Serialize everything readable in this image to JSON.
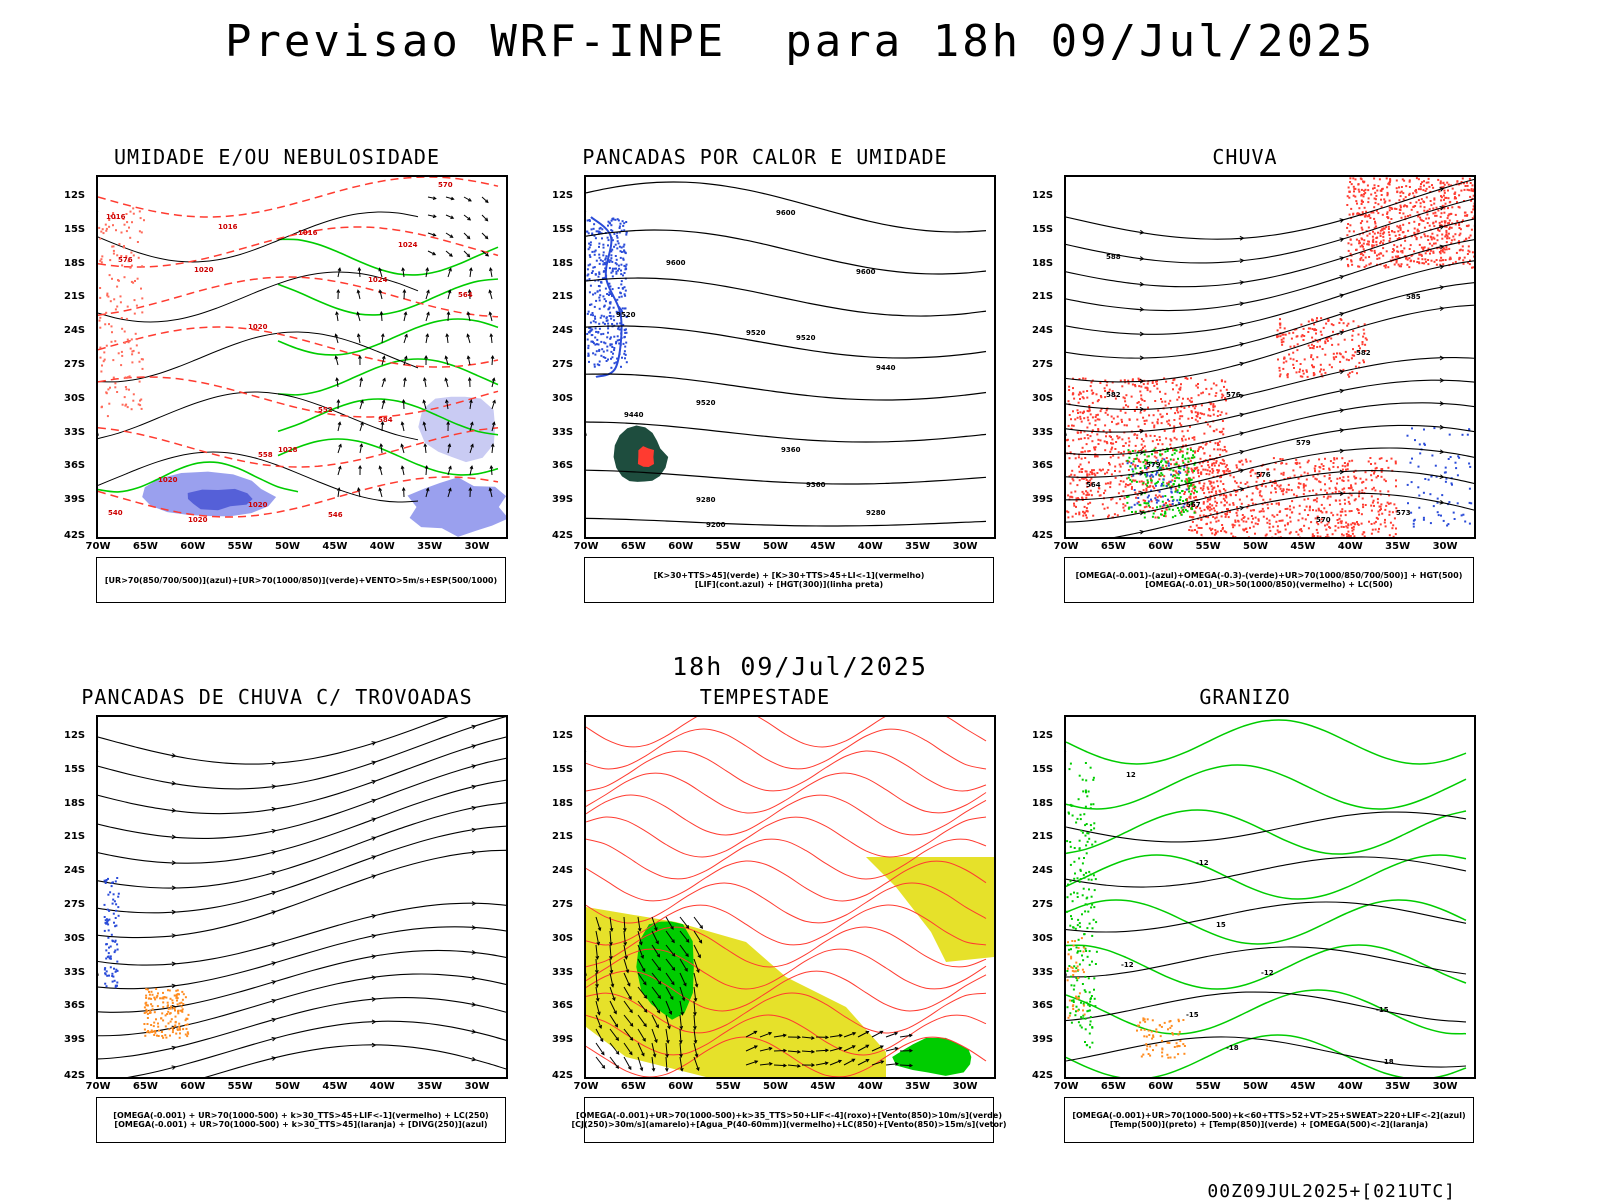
{
  "title": "Previsao WRF-INPE  para 18h 09/Jul/2025",
  "mid_title": "18h 09/Jul/2025",
  "footer": "00Z09JUL2025+[021UTC]",
  "lat_labels": [
    "12S",
    "15S",
    "18S",
    "21S",
    "24S",
    "27S",
    "30S",
    "33S",
    "36S",
    "39S",
    "42S"
  ],
  "lon_labels": [
    "70W",
    "65W",
    "60W",
    "55W",
    "50W",
    "45W",
    "40W",
    "35W",
    "30W"
  ],
  "colors": {
    "green": "#00cc00",
    "blue": "#2a4bd8",
    "red": "#ff3b30",
    "light_red": "#ff6a5a",
    "yellow": "#e6e12a",
    "orange": "#ff8c20",
    "purple_shade": "#9aa0ee",
    "dark_green": "#1e4d3e"
  },
  "panels": [
    {
      "id": "umidade",
      "title": "UMIDADE E/OU NEBULOSIDADE",
      "legend": [
        "[UR>70(850/700/500)](azul)+[UR>70(1000/850)](verde)+VENTO>5m/s+ESP(500/1000)"
      ],
      "contour_labels": [
        "1016",
        "1016",
        "1016",
        "1020",
        "1020",
        "1024",
        "1024",
        "1028",
        "1020",
        "1020",
        "1020",
        "564",
        "570",
        "576",
        "584",
        "552",
        "558",
        "546",
        "540"
      ]
    },
    {
      "id": "pancadas_calor",
      "title": "PANCADAS POR CALOR E UMIDADE",
      "legend": [
        "[K>30+TTS>45](verde) + [K>30+TTS>45+LI<-1](vermelho)",
        "[LIF](cont.azul) + [HGT(300)](linha preta)"
      ],
      "contour_labels": [
        "9600",
        "9600",
        "9600",
        "9520",
        "9520",
        "9520",
        "9520",
        "9440",
        "9440",
        "9360",
        "9360",
        "9280",
        "9280",
        "9200"
      ]
    },
    {
      "id": "chuva",
      "title": "CHUVA",
      "legend": [
        "[OMEGA(-0.001)-(azul)+OMEGA(-0.3)-(verde)+UR>70(1000/850/700/500)] + HGT(500)",
        "[OMEGA(-0.01)_UR>50(1000/850)(vermelho) + LC(500)"
      ],
      "contour_labels": [
        "585",
        "582",
        "579",
        "576",
        "573",
        "570",
        "567",
        "564",
        "588",
        "582",
        "579",
        "576"
      ]
    },
    {
      "id": "pancadas_trovoadas",
      "title": "PANCADAS DE CHUVA C/ TROVOADAS",
      "legend": [
        "[OMEGA(-0.001) + UR>70(1000-500) + k>30_TTS>45+LIF<-1](vermelho) + LC(250)",
        "[OMEGA(-0.001) + UR>70(1000-500) + k>30_TTS>45](laranja) + [DIVG(250)](azul)"
      ],
      "contour_labels": []
    },
    {
      "id": "tempestade",
      "title": "TEMPESTADE",
      "legend": [
        "[OMEGA(-0.001)+UR>70(1000-500)+k>35_TTS>50+LIF<-4](roxo)+[Vento(850)>10m/s](verde)",
        "[CJ(250)>30m/s](amarelo)+[Agua_P(40-60mm)](vermelho)+LC(850)+[Vento(850)>15m/s](vetor)"
      ],
      "contour_labels": []
    },
    {
      "id": "granizo",
      "title": "GRANIZO",
      "legend": [
        "[OMEGA(-0.001)+UR>70(1000-500)+k<60+TTS>52+VT>25+SWEAT>220+LIF<-2](azul)",
        "[Temp(500)](preto) + [Temp(850)](verde) + [OMEGA(500)<-2](laranja)"
      ],
      "contour_labels": [
        "-12",
        "-12",
        "-12",
        "-15",
        "-18",
        "-18",
        "-15",
        "15",
        "12"
      ]
    }
  ]
}
